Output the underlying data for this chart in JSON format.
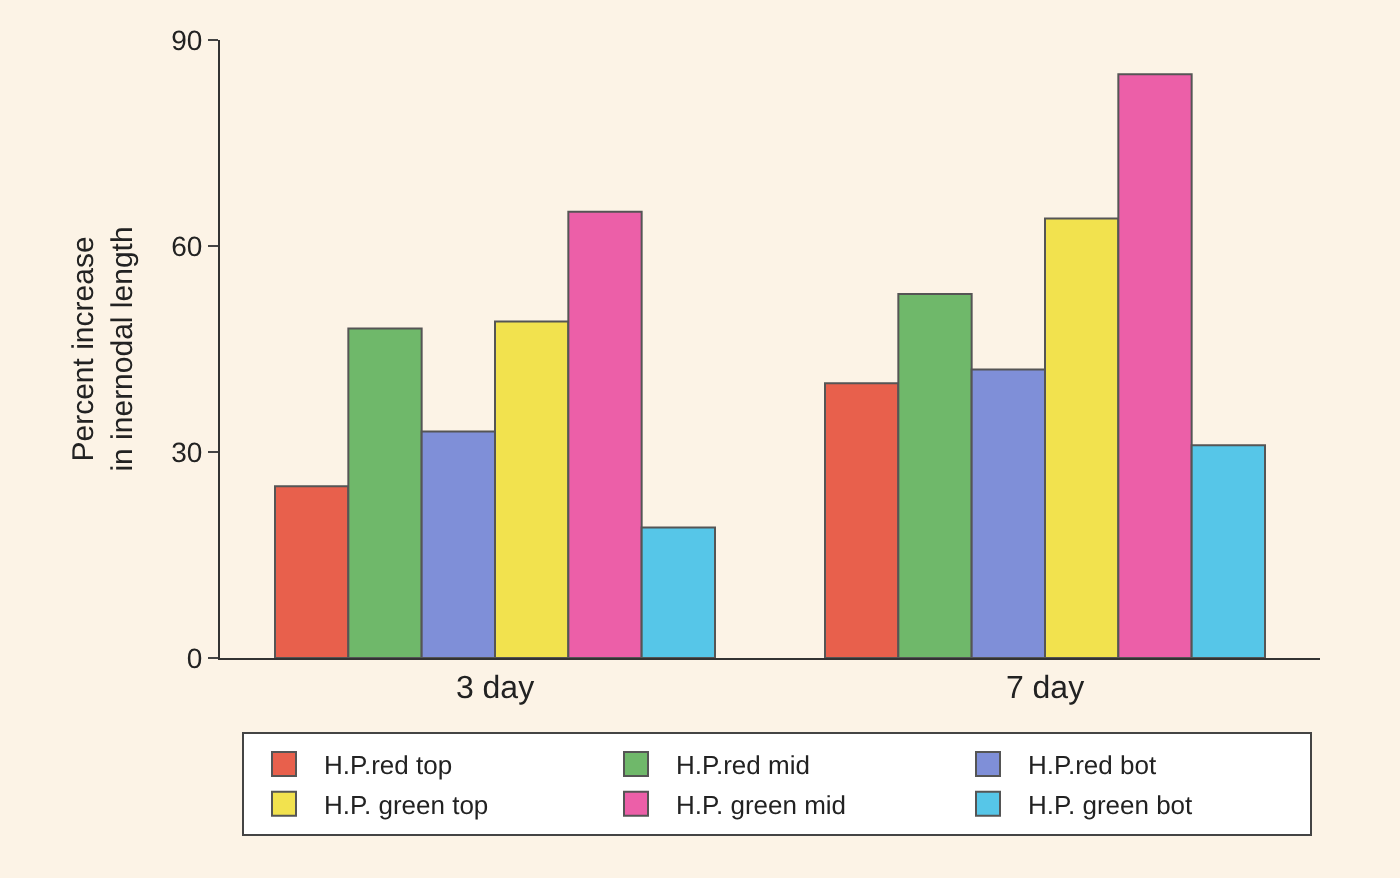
{
  "chart_data": {
    "type": "bar",
    "ylabel": "Percent increase\nin inernodal length",
    "categories": [
      "3 day",
      "7 day"
    ],
    "ylim": [
      0,
      90
    ],
    "yticks": [
      0,
      30,
      60,
      90
    ],
    "grid": false,
    "legend": "bottom",
    "series": [
      {
        "name": "H.P.red top",
        "color": "#e8604c",
        "values": [
          25,
          40
        ]
      },
      {
        "name": "H.P.red mid",
        "color": "#6fb86a",
        "values": [
          48,
          53
        ]
      },
      {
        "name": "H.P.red bot",
        "color": "#7f8fd8",
        "values": [
          33,
          42
        ]
      },
      {
        "name": "H.P. green top",
        "color": "#f2e24e",
        "values": [
          49,
          64
        ]
      },
      {
        "name": "H.P. green mid",
        "color": "#ec5fa8",
        "values": [
          65,
          85
        ]
      },
      {
        "name": "H.P. green bot",
        "color": "#56c6e8",
        "values": [
          19,
          31
        ]
      }
    ]
  }
}
